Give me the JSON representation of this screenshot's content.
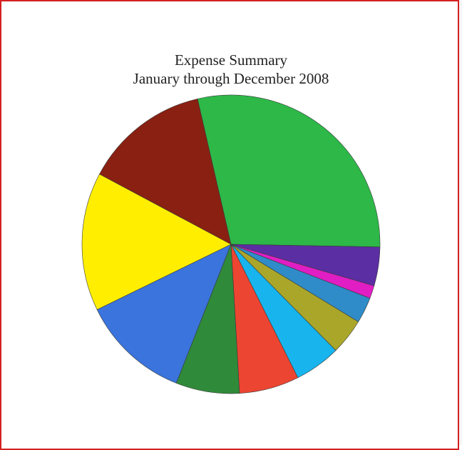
{
  "chart_data": {
    "type": "pie",
    "title": "Expense Summary",
    "subtitle": "January through December 2008",
    "start_angle_deg": -103,
    "direction": "clockwise",
    "slices": [
      {
        "value": 28.9,
        "color": "#2db848"
      },
      {
        "value": 4.2,
        "color": "#5b2ea3"
      },
      {
        "value": 1.4,
        "color": "#e01ec4"
      },
      {
        "value": 2.8,
        "color": "#2f8cc8"
      },
      {
        "value": 3.9,
        "color": "#a9a62a"
      },
      {
        "value": 5.0,
        "color": "#18b4ee"
      },
      {
        "value": 6.5,
        "color": "#ec4531"
      },
      {
        "value": 6.9,
        "color": "#2f8a3a"
      },
      {
        "value": 11.8,
        "color": "#3a74dc"
      },
      {
        "value": 15.0,
        "color": "#ffee00"
      },
      {
        "value": 13.6,
        "color": "#892012"
      }
    ]
  }
}
